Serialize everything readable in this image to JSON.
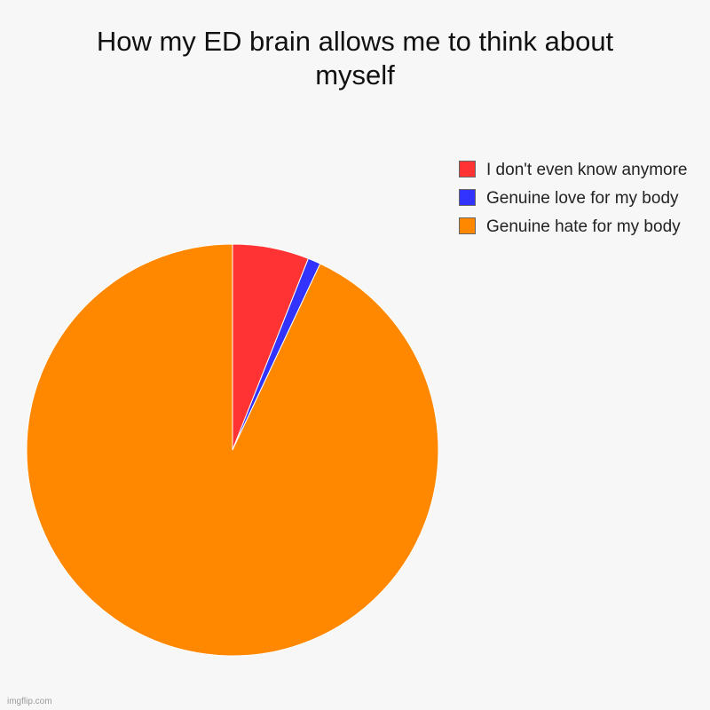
{
  "chart_data": {
    "type": "pie",
    "title": "How my ED brain allows me to think about\nmyself",
    "slices": [
      {
        "label": "I don't even know anymore",
        "value": 6,
        "color": "#ff3333"
      },
      {
        "label": "Genuine love for my body",
        "value": 1,
        "color": "#3333ff"
      },
      {
        "label": "Genuine hate for my body",
        "value": 93,
        "color": "#ff8800"
      }
    ],
    "legend_position": "right",
    "start_angle": "top, clockwise"
  },
  "legend": {
    "items": [
      {
        "label": "I don't even know anymore",
        "color": "#ff3333"
      },
      {
        "label": "Genuine love for my body",
        "color": "#3333ff"
      },
      {
        "label": "Genuine hate for my body",
        "color": "#ff8800"
      }
    ]
  },
  "watermark": "imgflip.com"
}
